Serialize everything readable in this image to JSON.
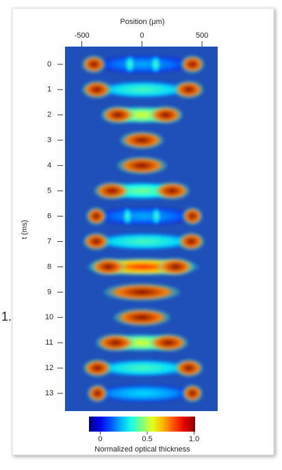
{
  "chart_data": {
    "type": "heatmap",
    "xlabel": "Position (μm)",
    "ylabel": "t (ms)",
    "xlim": [
      -640,
      630
    ],
    "xticks": [
      -500,
      0,
      500
    ],
    "categories": [
      0,
      1,
      2,
      3,
      4,
      5,
      6,
      7,
      8,
      9,
      10,
      11,
      12,
      13
    ],
    "ylim": [
      -0.7,
      13.7
    ],
    "rows": [
      {
        "x": [
          10,
          -400,
          -100,
          115,
          420
        ],
        "widths": [
          820,
          200,
          90,
          90,
          200
        ],
        "values": [
          0.3,
          1.0,
          0.45,
          0.45,
          1.0
        ]
      },
      {
        "x": [
          10,
          -375,
          390
        ],
        "widths": [
          820,
          250,
          250
        ],
        "values": [
          0.45,
          1.0,
          1.0
        ]
      },
      {
        "x": [
          0,
          -200,
          200
        ],
        "widths": [
          680,
          280,
          280
        ],
        "values": [
          0.6,
          1.0,
          1.0
        ]
      },
      {
        "x": [
          0
        ],
        "widths": [
          370
        ],
        "values": [
          1.0
        ]
      },
      {
        "x": [
          0
        ],
        "widths": [
          420
        ],
        "values": [
          1.0
        ]
      },
      {
        "x": [
          0,
          -250,
          250
        ],
        "widths": [
          720,
          300,
          300
        ],
        "values": [
          0.5,
          1.0,
          1.0
        ]
      },
      {
        "x": [
          20,
          -380,
          -120,
          120,
          420
        ],
        "widths": [
          860,
          170,
          80,
          80,
          170
        ],
        "values": [
          0.3,
          1.0,
          0.45,
          0.45,
          1.0
        ]
      },
      {
        "x": [
          20,
          -380,
          410
        ],
        "widths": [
          900,
          220,
          220
        ],
        "values": [
          0.45,
          1.0,
          1.0
        ]
      },
      {
        "x": [
          10,
          -280,
          280
        ],
        "widths": [
          940,
          300,
          300
        ],
        "values": [
          0.85,
          1.0,
          1.0
        ]
      },
      {
        "x": [
          0
        ],
        "widths": [
          640
        ],
        "values": [
          1.0
        ]
      },
      {
        "x": [
          0
        ],
        "widths": [
          480
        ],
        "values": [
          1.0
        ]
      },
      {
        "x": [
          0,
          -220,
          220
        ],
        "widths": [
          700,
          330,
          330
        ],
        "values": [
          0.6,
          1.0,
          1.0
        ]
      },
      {
        "x": [
          10,
          -370,
          390
        ],
        "widths": [
          840,
          240,
          240
        ],
        "values": [
          0.45,
          1.0,
          1.0
        ]
      },
      {
        "x": [
          10,
          -370,
          420
        ],
        "widths": [
          860,
          170,
          170
        ],
        "values": [
          0.35,
          1.0,
          1.0
        ]
      }
    ],
    "colorbar_label": "Normalized optical thickness",
    "clim": [
      -0.12,
      1.01
    ],
    "cticks": [
      0,
      0.5,
      {
        "value": 1,
        "label": "1.0"
      }
    ],
    "colormap": "jet"
  },
  "fragment": "1."
}
